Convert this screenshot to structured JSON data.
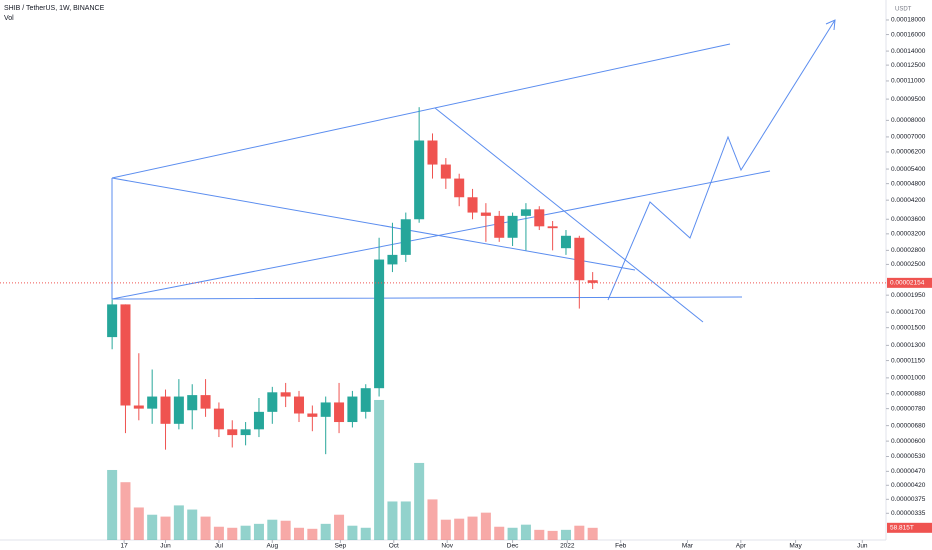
{
  "chart_data": {
    "type": "candlestick",
    "title": "SHIB / TetherUS, 1W, BINANCE",
    "currency": "USDT",
    "log_scale": true,
    "grid": false,
    "up_color": "#26a69a",
    "down_color": "#ef5350",
    "x": [
      0,
      1,
      2,
      3,
      4,
      5,
      6,
      7,
      8,
      9,
      10,
      11,
      12,
      13,
      14,
      15,
      16,
      17,
      18,
      19,
      20,
      21,
      22,
      23,
      24,
      25,
      26,
      27,
      28,
      29,
      30,
      31,
      32,
      33,
      34,
      35,
      36
    ],
    "open": [
      1.39e-05,
      1.81e-05,
      8e-06,
      7.8e-06,
      8.6e-06,
      6.9e-06,
      7.7e-06,
      8.7e-06,
      7.8e-06,
      6.6e-06,
      6.3e-06,
      6.6e-06,
      7.6e-06,
      8.9e-06,
      8.6e-06,
      7.5e-06,
      7.3e-06,
      8.2e-06,
      7e-06,
      7.6e-06,
      9.2e-06,
      2.5e-05,
      2.7e-05,
      3.6e-05,
      6.8e-05,
      5.6e-05,
      5e-05,
      4.3e-05,
      3.8e-05,
      3.7e-05,
      3.1e-05,
      3.7e-05,
      3.9e-05,
      3.4e-05,
      2.85e-05,
      3.1e-05,
      2.2e-05
    ],
    "high": [
      1.88e-05,
      1.81e-05,
      1.22e-05,
      1.07e-05,
      9.1e-06,
      9.9e-06,
      9.5e-06,
      9.9e-06,
      8.2e-06,
      7.1e-06,
      7e-06,
      8.5e-06,
      9.3e-06,
      9.6e-06,
      9e-06,
      8e-06,
      8.6e-06,
      9.6e-06,
      9e-06,
      9.5e-06,
      3.1e-05,
      3.5e-05,
      3.8e-05,
      8.9e-05,
      7.2e-05,
      5.9e-05,
      5.2e-05,
      4.6e-05,
      4.1e-05,
      3.85e-05,
      3.8e-05,
      4.1e-05,
      4e-05,
      3.55e-05,
      3.3e-05,
      3.15e-05,
      2.35e-05
    ],
    "low": [
      1.26e-05,
      6.4e-06,
      7.1e-06,
      6.9e-06,
      5.6e-06,
      6.6e-06,
      6.6e-06,
      7.3e-06,
      6.2e-06,
      5.7e-06,
      5.8e-06,
      6.2e-06,
      6.9e-06,
      7.9e-06,
      7e-06,
      6.5e-06,
      5.4e-06,
      6.4e-06,
      6.7e-06,
      7.2e-06,
      8.6e-06,
      2.35e-05,
      2.55e-05,
      3.5e-05,
      5e-05,
      4.6e-05,
      4e-05,
      3.6e-05,
      3e-05,
      3e-05,
      2.9e-05,
      2.8e-05,
      3.3e-05,
      2.8e-05,
      2.7e-05,
      1.75e-05,
      2.05e-05
    ],
    "close": [
      1.81e-05,
      8e-06,
      7.8e-06,
      8.6e-06,
      6.9e-06,
      8.6e-06,
      8.7e-06,
      7.8e-06,
      6.6e-06,
      6.3e-06,
      6.6e-06,
      7.6e-06,
      8.9e-06,
      8.6e-06,
      7.5e-06,
      7.3e-06,
      8.2e-06,
      7e-06,
      8.6e-06,
      9.2e-06,
      2.6e-05,
      2.7e-05,
      3.6e-05,
      6.8e-05,
      5.6e-05,
      5e-05,
      4.3e-05,
      3.8e-05,
      3.7e-05,
      3.1e-05,
      3.7e-05,
      3.9e-05,
      3.4e-05,
      3.35e-05,
      3.15e-05,
      2.2e-05,
      2.154e-05
    ],
    "volume": {
      "name": "Vol",
      "values": [
        338,
        279,
        157,
        122,
        113,
        167,
        147,
        113,
        64,
        59,
        69,
        78,
        98,
        93,
        59,
        54,
        78,
        122,
        69,
        59,
        676,
        186,
        186,
        372,
        196,
        98,
        103,
        113,
        132,
        64,
        59,
        74,
        49,
        44,
        49,
        69,
        58.815
      ],
      "value_labels": [
        null,
        null,
        null,
        null,
        null,
        null,
        null,
        null,
        null,
        null,
        null,
        null,
        null,
        null,
        null,
        null,
        null,
        null,
        null,
        null,
        null,
        null,
        null,
        null,
        null,
        null,
        null,
        null,
        null,
        null,
        null,
        null,
        null,
        null,
        null,
        null,
        "58.815T"
      ],
      "ylim": [
        0,
        700
      ]
    },
    "xlim": [
      -8.4,
      57.9
    ],
    "xticks": [
      {
        "value": 0.9,
        "label": "17"
      },
      {
        "value": 4.0,
        "label": "Jun"
      },
      {
        "value": 8.0,
        "label": "Jul"
      },
      {
        "value": 12.0,
        "label": "Aug"
      },
      {
        "value": 17.1,
        "label": "Sep"
      },
      {
        "value": 21.1,
        "label": "Oct"
      },
      {
        "value": 25.1,
        "label": "Nov"
      },
      {
        "value": 30.0,
        "label": "Dec"
      },
      {
        "value": 34.1,
        "label": "2022"
      },
      {
        "value": 38.1,
        "label": "Feb"
      },
      {
        "value": 43.1,
        "label": "Mar"
      },
      {
        "value": 47.1,
        "label": "Apr"
      },
      {
        "value": 51.2,
        "label": "May"
      },
      {
        "value": 56.2,
        "label": "Jun"
      }
    ],
    "ylim": [
      2.7e-06,
      0.0002115
    ],
    "yticks": [
      {
        "value": 0.00018,
        "label": "0.00018000"
      },
      {
        "value": 0.00016,
        "label": "0.00016000"
      },
      {
        "value": 0.00014,
        "label": "0.00014000"
      },
      {
        "value": 0.000125,
        "label": "0.00012500"
      },
      {
        "value": 0.00011,
        "label": "0.00011000"
      },
      {
        "value": 9.5e-05,
        "label": "0.00009500"
      },
      {
        "value": 8e-05,
        "label": "0.00008000"
      },
      {
        "value": 7e-05,
        "label": "0.00007000"
      },
      {
        "value": 6.2e-05,
        "label": "0.00006200"
      },
      {
        "value": 5.4e-05,
        "label": "0.00005400"
      },
      {
        "value": 4.8e-05,
        "label": "0.00004800"
      },
      {
        "value": 4.2e-05,
        "label": "0.00004200"
      },
      {
        "value": 3.6e-05,
        "label": "0.00003600"
      },
      {
        "value": 3.2e-05,
        "label": "0.00003200"
      },
      {
        "value": 2.8e-05,
        "label": "0.00002800"
      },
      {
        "value": 2.5e-05,
        "label": "0.00002500"
      },
      {
        "value": 1.95e-05,
        "label": "0.00001950"
      },
      {
        "value": 1.7e-05,
        "label": "0.00001700"
      },
      {
        "value": 1.5e-05,
        "label": "0.00001500"
      },
      {
        "value": 1.3e-05,
        "label": "0.00001300"
      },
      {
        "value": 1.15e-05,
        "label": "0.00001150"
      },
      {
        "value": 1e-05,
        "label": "0.00001000"
      },
      {
        "value": 8.8e-06,
        "label": "0.00000880"
      },
      {
        "value": 7.8e-06,
        "label": "0.00000780"
      },
      {
        "value": 6.8e-06,
        "label": "0.00000680"
      },
      {
        "value": 6e-06,
        "label": "0.00000600"
      },
      {
        "value": 5.3e-06,
        "label": "0.00000530"
      },
      {
        "value": 4.7e-06,
        "label": "0.00000470"
      },
      {
        "value": 4.2e-06,
        "label": "0.00000420"
      },
      {
        "value": 3.75e-06,
        "label": "0.00000375"
      },
      {
        "value": 3.35e-06,
        "label": "0.00000335"
      }
    ]
  }
}
